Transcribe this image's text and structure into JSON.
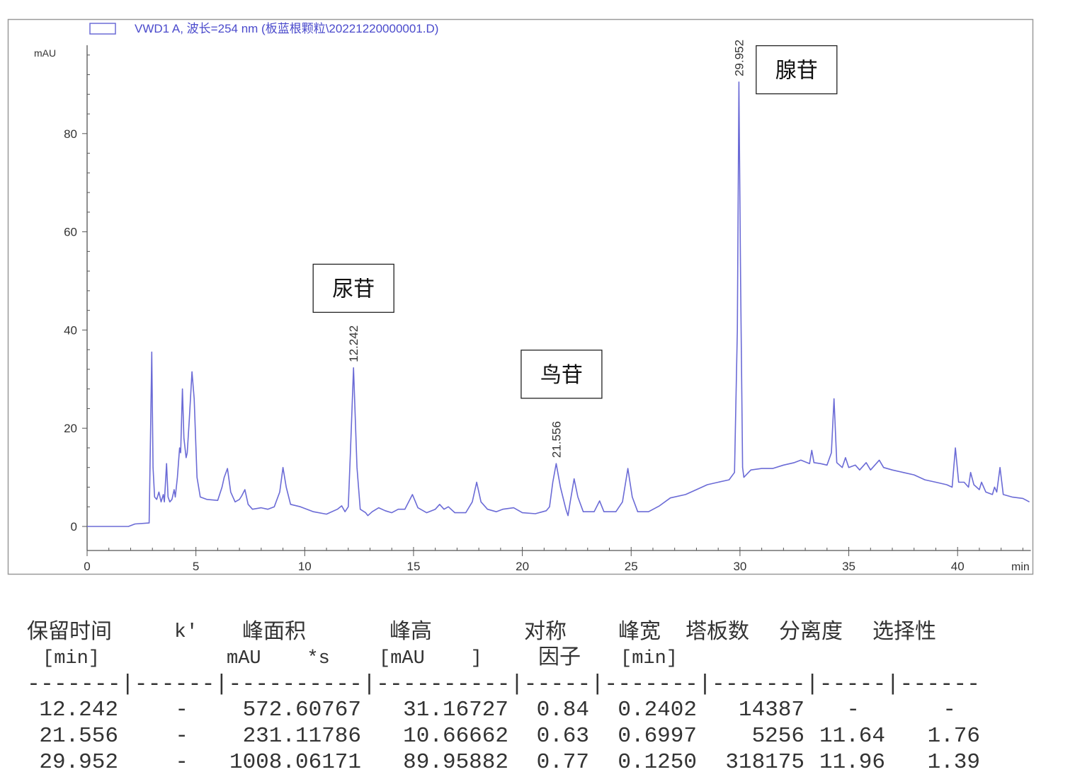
{
  "chart_data": {
    "type": "line",
    "legend": "VWD1 A, 波长=254 nm (板蓝根颗粒\\20221220000001.D)",
    "legend_placement": "top-left",
    "ylabel": "mAU",
    "xlabel": "min",
    "xlim": [
      0,
      43.3
    ],
    "ylim": [
      -3,
      98
    ],
    "xticks": [
      0,
      5,
      10,
      15,
      20,
      25,
      30,
      35,
      40
    ],
    "yticks": [
      0,
      20,
      40,
      60,
      80
    ],
    "grid": false,
    "line_color": "#6b6bd6",
    "series": [
      {
        "points": [
          [
            0,
            0
          ],
          [
            1.9,
            0
          ],
          [
            2.2,
            0.5
          ],
          [
            2.85,
            0.7
          ],
          [
            2.92,
            20
          ],
          [
            2.97,
            35.5
          ],
          [
            3.03,
            12
          ],
          [
            3.1,
            6
          ],
          [
            3.2,
            5.5
          ],
          [
            3.3,
            7
          ],
          [
            3.4,
            5
          ],
          [
            3.5,
            6.5
          ],
          [
            3.55,
            5
          ],
          [
            3.65,
            12.8
          ],
          [
            3.72,
            6
          ],
          [
            3.8,
            5
          ],
          [
            3.9,
            5.5
          ],
          [
            4.0,
            7.5
          ],
          [
            4.05,
            6
          ],
          [
            4.15,
            10
          ],
          [
            4.25,
            16
          ],
          [
            4.3,
            15
          ],
          [
            4.38,
            28
          ],
          [
            4.45,
            18
          ],
          [
            4.55,
            14
          ],
          [
            4.6,
            15
          ],
          [
            4.7,
            22
          ],
          [
            4.82,
            31.5
          ],
          [
            4.92,
            26
          ],
          [
            5.05,
            10
          ],
          [
            5.2,
            6
          ],
          [
            5.5,
            5.5
          ],
          [
            6.0,
            5.3
          ],
          [
            6.2,
            8
          ],
          [
            6.3,
            10
          ],
          [
            6.45,
            11.8
          ],
          [
            6.6,
            7
          ],
          [
            6.8,
            5
          ],
          [
            7.0,
            5.5
          ],
          [
            7.1,
            6.2
          ],
          [
            7.25,
            7.5
          ],
          [
            7.4,
            4.5
          ],
          [
            7.6,
            3.5
          ],
          [
            8.0,
            3.8
          ],
          [
            8.3,
            3.5
          ],
          [
            8.6,
            4
          ],
          [
            8.85,
            7
          ],
          [
            9.0,
            12
          ],
          [
            9.15,
            8
          ],
          [
            9.35,
            4.5
          ],
          [
            9.8,
            4
          ],
          [
            10.4,
            3
          ],
          [
            11,
            2.5
          ],
          [
            11.5,
            3.5
          ],
          [
            11.7,
            4.2
          ],
          [
            11.85,
            3
          ],
          [
            12.0,
            4
          ],
          [
            12.1,
            15
          ],
          [
            12.242,
            32.3
          ],
          [
            12.4,
            12
          ],
          [
            12.55,
            3.5
          ],
          [
            12.8,
            2.8
          ],
          [
            12.9,
            2.2
          ],
          [
            13.1,
            3
          ],
          [
            13.4,
            3.8
          ],
          [
            13.7,
            3.2
          ],
          [
            14.0,
            2.8
          ],
          [
            14.3,
            3.5
          ],
          [
            14.6,
            3.5
          ],
          [
            14.95,
            6.5
          ],
          [
            15.2,
            3.8
          ],
          [
            15.6,
            2.8
          ],
          [
            16,
            3.5
          ],
          [
            16.2,
            4.5
          ],
          [
            16.4,
            3.5
          ],
          [
            16.6,
            4
          ],
          [
            16.9,
            2.8
          ],
          [
            17.4,
            2.8
          ],
          [
            17.7,
            5
          ],
          [
            17.9,
            9
          ],
          [
            18.1,
            5
          ],
          [
            18.4,
            3.5
          ],
          [
            18.8,
            3
          ],
          [
            19.1,
            3.5
          ],
          [
            19.6,
            3.8
          ],
          [
            20,
            2.8
          ],
          [
            20.6,
            2.6
          ],
          [
            21.1,
            3.2
          ],
          [
            21.25,
            4
          ],
          [
            21.4,
            9
          ],
          [
            21.556,
            12.8
          ],
          [
            21.75,
            8
          ],
          [
            22.0,
            3.5
          ],
          [
            22.1,
            2.2
          ],
          [
            22.2,
            5
          ],
          [
            22.38,
            9.7
          ],
          [
            22.55,
            6
          ],
          [
            22.8,
            3
          ],
          [
            23.3,
            3
          ],
          [
            23.55,
            5.2
          ],
          [
            23.75,
            3
          ],
          [
            24.3,
            3
          ],
          [
            24.6,
            5
          ],
          [
            24.85,
            11.8
          ],
          [
            25.05,
            6
          ],
          [
            25.3,
            3
          ],
          [
            25.8,
            3
          ],
          [
            26.3,
            4.2
          ],
          [
            26.8,
            5.8
          ],
          [
            27.5,
            6.5
          ],
          [
            28,
            7.5
          ],
          [
            28.5,
            8.5
          ],
          [
            29,
            9
          ],
          [
            29.5,
            9.5
          ],
          [
            29.75,
            11
          ],
          [
            29.88,
            40
          ],
          [
            29.952,
            90.5
          ],
          [
            30.03,
            50
          ],
          [
            30.12,
            12
          ],
          [
            30.18,
            10
          ],
          [
            30.5,
            11.5
          ],
          [
            31,
            11.8
          ],
          [
            31.5,
            11.8
          ],
          [
            32,
            12.5
          ],
          [
            32.5,
            13
          ],
          [
            32.8,
            13.5
          ],
          [
            33.2,
            12.8
          ],
          [
            33.3,
            15.5
          ],
          [
            33.4,
            13
          ],
          [
            33.7,
            12.8
          ],
          [
            34,
            12.5
          ],
          [
            34.2,
            15
          ],
          [
            34.32,
            26
          ],
          [
            34.45,
            13
          ],
          [
            34.7,
            12
          ],
          [
            34.85,
            14
          ],
          [
            35,
            12
          ],
          [
            35.3,
            12.5
          ],
          [
            35.5,
            11.5
          ],
          [
            35.8,
            13
          ],
          [
            36,
            11.5
          ],
          [
            36.4,
            13.5
          ],
          [
            36.6,
            12
          ],
          [
            37,
            11.5
          ],
          [
            37.5,
            11
          ],
          [
            38,
            10.5
          ],
          [
            38.5,
            9.5
          ],
          [
            39,
            9
          ],
          [
            39.5,
            8.5
          ],
          [
            39.75,
            8
          ],
          [
            39.9,
            16
          ],
          [
            40.05,
            9
          ],
          [
            40.3,
            9
          ],
          [
            40.5,
            8
          ],
          [
            40.6,
            11
          ],
          [
            40.75,
            8.5
          ],
          [
            41,
            7.5
          ],
          [
            41.1,
            9
          ],
          [
            41.3,
            7
          ],
          [
            41.6,
            6.5
          ],
          [
            41.7,
            8
          ],
          [
            41.8,
            7
          ],
          [
            41.95,
            12
          ],
          [
            42.1,
            6.5
          ],
          [
            42.5,
            6
          ],
          [
            43,
            5.7
          ],
          [
            43.3,
            5
          ]
        ]
      }
    ],
    "peak_labels": [
      {
        "x": 12.242,
        "y": 32.3,
        "text": "12.242"
      },
      {
        "x": 21.556,
        "y": 12.8,
        "text": "21.556"
      },
      {
        "x": 29.952,
        "y": 90.5,
        "text": "29.952"
      }
    ],
    "annotations": [
      {
        "text": "尿苷",
        "x": 12.242,
        "y": 48.5
      },
      {
        "text": "鸟苷",
        "x": 21.8,
        "y": 31
      },
      {
        "text": "腺苷",
        "x": 32.6,
        "y": 93
      }
    ]
  },
  "table": {
    "headers_line1": [
      "保留时间",
      "k'",
      "峰面积",
      "峰高",
      "对称",
      "峰宽",
      "塔板数",
      "分离度",
      "选择性"
    ],
    "headers_line2": [
      "[min]",
      "mAU    *s",
      "[mAU    ]",
      "因子",
      "[min]"
    ],
    "separator": "-------|------|----------|----------|-----|-------|-------|-----|------",
    "rows": [
      [
        "12.242",
        "-",
        "572.60767",
        "31.16727",
        "0.84",
        "0.2402",
        "14387",
        "-",
        "-"
      ],
      [
        "21.556",
        "-",
        "231.11786",
        "10.66662",
        "0.63",
        "0.6997",
        "5256",
        "11.64",
        "1.76"
      ],
      [
        "29.952",
        "-",
        "1008.06171",
        "89.95882",
        "0.77",
        "0.1250",
        "318175",
        "11.96",
        "1.39"
      ]
    ]
  }
}
